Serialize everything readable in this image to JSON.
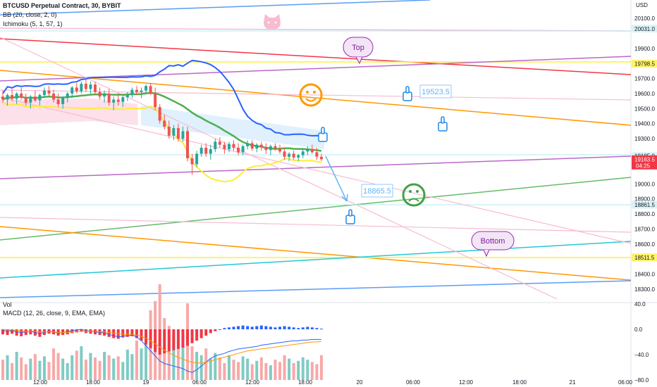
{
  "header": {
    "symbol": "BTCUSD Perpetual Contract, 30, BYBIT",
    "bb": "BB (20, close, 2, 0)",
    "ichimoku": "Ichimoku (5, 1, 57, 1)",
    "currency": "USD",
    "vol": "Vol",
    "macd": "MACD (12, 26, close, 9, EMA, EMA)"
  },
  "annotations": {
    "top": "Top",
    "bottom": "Bottom",
    "target_high": "19523.5",
    "target_low": "18865.5"
  },
  "price_axis": {
    "ticks": [
      "20100.0",
      "19900.0",
      "19800.0",
      "19700.0",
      "19600.0",
      "19500.0",
      "19400.0",
      "19300.0",
      "19000.0",
      "18900.0",
      "18800.0",
      "18700.0",
      "18600.0",
      "18400.0",
      "18300.0"
    ],
    "tags": [
      {
        "label": "20031.0",
        "bg": "#d9f3f5",
        "fg": "#131722"
      },
      {
        "label": "19798.5",
        "bg": "#fff36a",
        "fg": "#131722"
      },
      {
        "label": "19185.0",
        "bg": "#d9f3f5",
        "fg": "#131722"
      },
      {
        "label": "19163.5",
        "sub": "04:25",
        "bg": "#f23645",
        "fg": "#ffffff"
      },
      {
        "label": "18861.5",
        "bg": "#d9f3f5",
        "fg": "#131722"
      },
      {
        "label": "18511.5",
        "bg": "#fff36a",
        "fg": "#131722"
      }
    ]
  },
  "macd_axis": {
    "ticks": [
      "40.0",
      "0.0",
      "−40.0",
      "−80.0"
    ]
  },
  "time_axis": {
    "ticks": [
      "12:00",
      "18:00",
      "19",
      "06:00",
      "12:00",
      "18:00",
      "20",
      "06:00",
      "12:00",
      "18:00",
      "21",
      "06:00"
    ]
  },
  "colors": {
    "candle_up": "#26a69a",
    "candle_down": "#ef5350",
    "bb_upper": "#2962ff",
    "bb_basis": "#4caf50",
    "bb_lower": "#ffeb3b",
    "cloud": "#f8bbd0",
    "vol_up": "#80cbc4",
    "vol_down": "#f7a9a8",
    "hist_up": "#2962ff",
    "hist_down": "#f23645",
    "macd_line": "#2962ff",
    "signal_line": "#ff9800"
  },
  "chart_data": {
    "type": "candlestick",
    "symbol": "BTCUSD Perpetual Contract",
    "interval": "30",
    "exchange": "BYBIT",
    "last_price": 19163.5,
    "countdown": "04:25",
    "price_range": [
      18270,
      20170
    ],
    "candles": [
      {
        "o": 19580,
        "h": 19620,
        "l": 19540,
        "c": 19560
      },
      {
        "o": 19560,
        "h": 19600,
        "l": 19520,
        "c": 19590
      },
      {
        "o": 19590,
        "h": 19630,
        "l": 19550,
        "c": 19565
      },
      {
        "o": 19565,
        "h": 19610,
        "l": 19530,
        "c": 19600
      },
      {
        "o": 19600,
        "h": 19640,
        "l": 19560,
        "c": 19575
      },
      {
        "o": 19575,
        "h": 19600,
        "l": 19520,
        "c": 19540
      },
      {
        "o": 19540,
        "h": 19590,
        "l": 19500,
        "c": 19580
      },
      {
        "o": 19580,
        "h": 19620,
        "l": 19545,
        "c": 19555
      },
      {
        "o": 19555,
        "h": 19600,
        "l": 19520,
        "c": 19590
      },
      {
        "o": 19590,
        "h": 19640,
        "l": 19570,
        "c": 19620
      },
      {
        "o": 19620,
        "h": 19650,
        "l": 19580,
        "c": 19600
      },
      {
        "o": 19600,
        "h": 19625,
        "l": 19540,
        "c": 19560
      },
      {
        "o": 19560,
        "h": 19600,
        "l": 19510,
        "c": 19530
      },
      {
        "o": 19530,
        "h": 19580,
        "l": 19500,
        "c": 19570
      },
      {
        "o": 19570,
        "h": 19610,
        "l": 19540,
        "c": 19600
      },
      {
        "o": 19600,
        "h": 19650,
        "l": 19570,
        "c": 19640
      },
      {
        "o": 19640,
        "h": 19670,
        "l": 19600,
        "c": 19615
      },
      {
        "o": 19615,
        "h": 19680,
        "l": 19600,
        "c": 19665
      },
      {
        "o": 19665,
        "h": 19690,
        "l": 19610,
        "c": 19630
      },
      {
        "o": 19630,
        "h": 19680,
        "l": 19600,
        "c": 19660
      },
      {
        "o": 19660,
        "h": 19680,
        "l": 19590,
        "c": 19610
      },
      {
        "o": 19610,
        "h": 19640,
        "l": 19560,
        "c": 19580
      },
      {
        "o": 19580,
        "h": 19620,
        "l": 19540,
        "c": 19600
      },
      {
        "o": 19600,
        "h": 19630,
        "l": 19520,
        "c": 19540
      },
      {
        "o": 19540,
        "h": 19580,
        "l": 19490,
        "c": 19560
      },
      {
        "o": 19560,
        "h": 19600,
        "l": 19520,
        "c": 19545
      },
      {
        "o": 19545,
        "h": 19590,
        "l": 19510,
        "c": 19575
      },
      {
        "o": 19575,
        "h": 19610,
        "l": 19550,
        "c": 19590
      },
      {
        "o": 19590,
        "h": 19640,
        "l": 19570,
        "c": 19625
      },
      {
        "o": 19625,
        "h": 19650,
        "l": 19590,
        "c": 19610
      },
      {
        "o": 19610,
        "h": 19640,
        "l": 19570,
        "c": 19620
      },
      {
        "o": 19620,
        "h": 19660,
        "l": 19600,
        "c": 19650
      },
      {
        "o": 19650,
        "h": 19670,
        "l": 19590,
        "c": 19600
      },
      {
        "o": 19600,
        "h": 19640,
        "l": 19490,
        "c": 19510
      },
      {
        "o": 19510,
        "h": 19530,
        "l": 19400,
        "c": 19420
      },
      {
        "o": 19420,
        "h": 19460,
        "l": 19360,
        "c": 19380
      },
      {
        "o": 19380,
        "h": 19420,
        "l": 19300,
        "c": 19320
      },
      {
        "o": 19320,
        "h": 19390,
        "l": 19290,
        "c": 19370
      },
      {
        "o": 19370,
        "h": 19400,
        "l": 19280,
        "c": 19300
      },
      {
        "o": 19300,
        "h": 19380,
        "l": 19280,
        "c": 19350
      },
      {
        "o": 19350,
        "h": 19380,
        "l": 19150,
        "c": 19170
      },
      {
        "o": 19170,
        "h": 19200,
        "l": 19060,
        "c": 19130
      },
      {
        "o": 19130,
        "h": 19220,
        "l": 19110,
        "c": 19200
      },
      {
        "o": 19200,
        "h": 19260,
        "l": 19180,
        "c": 19240
      },
      {
        "o": 19240,
        "h": 19270,
        "l": 19180,
        "c": 19200
      },
      {
        "o": 19200,
        "h": 19260,
        "l": 19160,
        "c": 19230
      },
      {
        "o": 19230,
        "h": 19300,
        "l": 19210,
        "c": 19280
      },
      {
        "o": 19280,
        "h": 19310,
        "l": 19240,
        "c": 19260
      },
      {
        "o": 19260,
        "h": 19280,
        "l": 19200,
        "c": 19230
      },
      {
        "o": 19230,
        "h": 19280,
        "l": 19210,
        "c": 19265
      },
      {
        "o": 19265,
        "h": 19290,
        "l": 19220,
        "c": 19240
      },
      {
        "o": 19240,
        "h": 19270,
        "l": 19190,
        "c": 19210
      },
      {
        "o": 19210,
        "h": 19260,
        "l": 19190,
        "c": 19250
      },
      {
        "o": 19250,
        "h": 19290,
        "l": 19230,
        "c": 19270
      },
      {
        "o": 19270,
        "h": 19290,
        "l": 19220,
        "c": 19235
      },
      {
        "o": 19235,
        "h": 19270,
        "l": 19210,
        "c": 19260
      },
      {
        "o": 19260,
        "h": 19280,
        "l": 19220,
        "c": 19245
      },
      {
        "o": 19245,
        "h": 19270,
        "l": 19200,
        "c": 19225
      },
      {
        "o": 19225,
        "h": 19260,
        "l": 19190,
        "c": 19250
      },
      {
        "o": 19250,
        "h": 19270,
        "l": 19220,
        "c": 19235
      },
      {
        "o": 19235,
        "h": 19260,
        "l": 19200,
        "c": 19215
      },
      {
        "o": 19215,
        "h": 19240,
        "l": 19160,
        "c": 19180
      },
      {
        "o": 19180,
        "h": 19210,
        "l": 19150,
        "c": 19200
      },
      {
        "o": 19200,
        "h": 19220,
        "l": 19160,
        "c": 19175
      },
      {
        "o": 19175,
        "h": 19200,
        "l": 19150,
        "c": 19190
      },
      {
        "o": 19190,
        "h": 19230,
        "l": 19170,
        "c": 19215
      },
      {
        "o": 19215,
        "h": 19250,
        "l": 19190,
        "c": 19230
      },
      {
        "o": 19230,
        "h": 19260,
        "l": 19200,
        "c": 19210
      },
      {
        "o": 19210,
        "h": 19240,
        "l": 19160,
        "c": 19180
      },
      {
        "o": 19180,
        "h": 19200,
        "l": 19150,
        "c": 19163.5
      }
    ],
    "volume": [
      18,
      22,
      15,
      25,
      20,
      14,
      19,
      23,
      17,
      21,
      16,
      28,
      24,
      19,
      15,
      22,
      26,
      30,
      18,
      24,
      20,
      17,
      25,
      22,
      19,
      21,
      16,
      27,
      23,
      35,
      28,
      45,
      62,
      70,
      85,
      55,
      48,
      40,
      35,
      32,
      68,
      30,
      25,
      22,
      28,
      19,
      24,
      20,
      15,
      22,
      18,
      16,
      21,
      19,
      14,
      17,
      20,
      15,
      13,
      18,
      16,
      22,
      19,
      15,
      17,
      20,
      18,
      16,
      14,
      22
    ],
    "macd": {
      "histogram": [
        -8,
        -9,
        -7,
        -10,
        -11,
        -9,
        -8,
        -10,
        -12,
        -9,
        -7,
        -8,
        -10,
        -9,
        -8,
        -6,
        -5,
        -4,
        -6,
        -7,
        -8,
        -9,
        -10,
        -12,
        -14,
        -15,
        -13,
        -12,
        -11,
        -14,
        -18,
        -24,
        -30,
        -36,
        -40,
        -38,
        -35,
        -33,
        -31,
        -29,
        -26,
        -22,
        -18,
        -14,
        -10,
        -6,
        -3,
        0,
        2,
        3,
        4,
        5,
        6,
        5,
        4,
        5,
        6,
        5,
        4,
        3,
        4,
        5,
        4,
        3,
        2,
        3,
        4,
        3,
        2,
        1
      ],
      "macd_line": [
        -2,
        -3,
        -2,
        -4,
        -5,
        -4,
        -3,
        -5,
        -7,
        -5,
        -3,
        -4,
        -6,
        -5,
        -4,
        -2,
        -1,
        0,
        -2,
        -3,
        -4,
        -5,
        -6,
        -8,
        -10,
        -12,
        -11,
        -10,
        -9,
        -12,
        -18,
        -26,
        -34,
        -42,
        -50,
        -54,
        -56,
        -58,
        -60,
        -62,
        -66,
        -68,
        -64,
        -58,
        -52,
        -46,
        -42,
        -40,
        -38,
        -35,
        -33,
        -31,
        -30,
        -29,
        -28,
        -27,
        -25,
        -24,
        -23,
        -22,
        -21,
        -20,
        -19,
        -18,
        -18,
        -17,
        -17,
        -16,
        -16,
        -16
      ],
      "signal_line": [
        0,
        -1,
        -1,
        -2,
        -3,
        -3,
        -3,
        -3,
        -4,
        -4,
        -4,
        -4,
        -5,
        -5,
        -5,
        -4,
        -4,
        -3,
        -3,
        -3,
        -3,
        -4,
        -4,
        -5,
        -6,
        -7,
        -8,
        -8,
        -8,
        -9,
        -11,
        -14,
        -18,
        -23,
        -28,
        -33,
        -37,
        -41,
        -44,
        -47,
        -50,
        -52,
        -53,
        -53,
        -52,
        -50,
        -48,
        -46,
        -44,
        -42,
        -40,
        -38,
        -36,
        -34,
        -33,
        -32,
        -31,
        -30,
        -29,
        -28,
        -27,
        -26,
        -25,
        -24,
        -23,
        -22,
        -21,
        -20,
        -20,
        -19
      ]
    }
  }
}
